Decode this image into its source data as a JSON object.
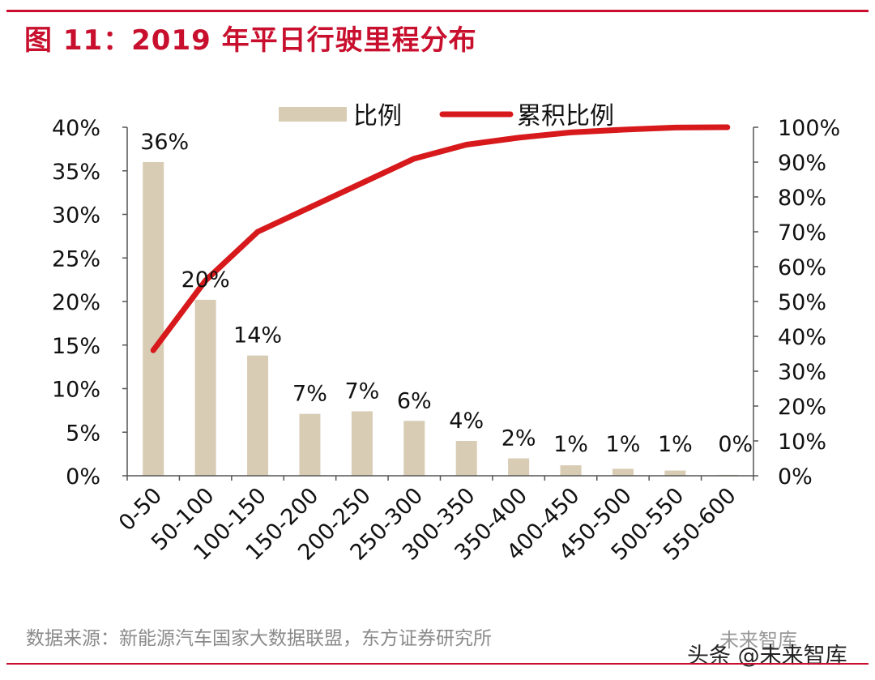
{
  "header": {
    "title": "图 11：2019 年平日行驶里程分布"
  },
  "chart_data": {
    "type": "bar+line",
    "categories": [
      "0-50",
      "50-100",
      "100-150",
      "150-200",
      "200-250",
      "250-300",
      "300-350",
      "350-400",
      "400-450",
      "450-500",
      "500-550",
      "550-600"
    ],
    "series": [
      {
        "name": "比例",
        "type": "bar",
        "axis": "left",
        "color": "#d8ccb4",
        "values": [
          36,
          20.2,
          13.8,
          7.1,
          7.4,
          6.3,
          4.0,
          2.0,
          1.2,
          0.8,
          0.6,
          0.1
        ],
        "data_labels": [
          "36%",
          "20%",
          "14%",
          "7%",
          "7%",
          "6%",
          "4%",
          "2%",
          "1%",
          "1%",
          "1%",
          "0%"
        ]
      },
      {
        "name": "累积比例",
        "type": "line",
        "axis": "right",
        "color": "#d7191c",
        "values": [
          36,
          56,
          70,
          77,
          84,
          91,
          95,
          97,
          98.5,
          99.3,
          99.9,
          100
        ]
      }
    ],
    "left_axis": {
      "min": 0,
      "max": 40,
      "step": 5,
      "tick_labels": [
        "0%",
        "5%",
        "10%",
        "15%",
        "20%",
        "25%",
        "30%",
        "35%",
        "40%"
      ]
    },
    "right_axis": {
      "min": 0,
      "max": 100,
      "step": 10,
      "tick_labels": [
        "0%",
        "10%",
        "20%",
        "30%",
        "40%",
        "50%",
        "60%",
        "70%",
        "80%",
        "90%",
        "100%"
      ]
    },
    "legend": {
      "placement": "top-center",
      "items": [
        "比例",
        "累积比例"
      ]
    },
    "grid": false
  },
  "footer": {
    "source": "数据来源：新能源汽车国家大数据联盟，东方证券研究所",
    "watermark": "头条 @未来智库",
    "watermark_top": "未来智库"
  }
}
